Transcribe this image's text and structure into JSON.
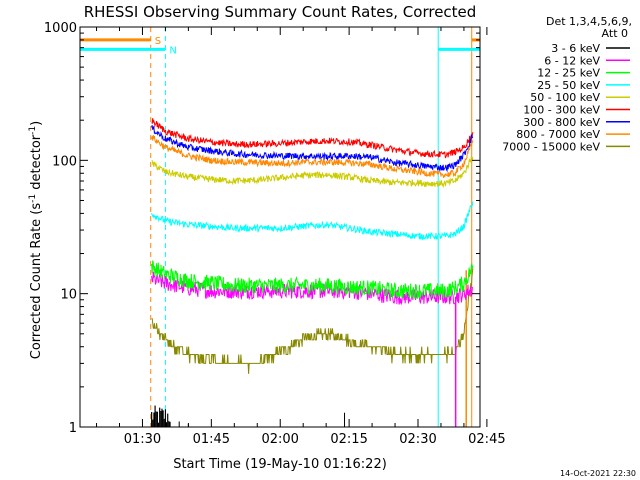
{
  "chart_data": {
    "type": "line",
    "title": "RHESSI Observing Summary Count Rates, Corrected",
    "xlabel": "Start Time (19-May-10 01:16:22)",
    "ylabel_main": "Corrected Count Rate (s",
    "ylabel_exp1": "-1",
    "ylabel_mid": " detector",
    "ylabel_exp2": "-1",
    "ylabel_end": ")",
    "y_scale": "log",
    "ylim": [
      1,
      1000
    ],
    "xlim_minutes": [
      76.4,
      163.5
    ],
    "x_ticks": [
      {
        "minute": 90,
        "label": "01:30"
      },
      {
        "minute": 105,
        "label": "01:45"
      },
      {
        "minute": 120,
        "label": "02:00"
      },
      {
        "minute": 135,
        "label": "02:15"
      },
      {
        "minute": 150,
        "label": "02:30"
      },
      {
        "minute": 165,
        "label": "02:45"
      }
    ],
    "y_ticks": [
      {
        "value": 1,
        "label": "1"
      },
      {
        "value": 10,
        "label": "10"
      },
      {
        "value": 100,
        "label": "100"
      },
      {
        "value": 1000,
        "label": "1000"
      }
    ],
    "legend": {
      "header1": "Det 1,3,4,5,6,9,",
      "header2": "Att 0",
      "placement": "right",
      "entries": [
        {
          "label": "3 - 6 keV",
          "color": "#000000"
        },
        {
          "label": "6 - 12 keV",
          "color": "#ff00ff"
        },
        {
          "label": "12 - 25 keV",
          "color": "#00ff00"
        },
        {
          "label": "25 - 50 keV",
          "color": "#00ffff"
        },
        {
          "label": "50 - 100 keV",
          "color": "#cccc00"
        },
        {
          "label": "100 - 300 keV",
          "color": "#ff0000"
        },
        {
          "label": "300 - 800 keV",
          "color": "#0000ff"
        },
        {
          "label": "800 - 7000 keV",
          "color": "#ff8800"
        },
        {
          "label": "7000 - 15000 keV",
          "color": "#888800"
        }
      ]
    },
    "series": [
      {
        "name": "300 - 800 keV",
        "color": "#0000ff",
        "x": [
          92,
          95,
          100,
          105,
          110,
          115,
          120,
          125,
          130,
          135,
          140,
          145,
          150,
          152,
          156,
          158,
          160,
          162
        ],
        "y": [
          175,
          145,
          125,
          118,
          112,
          110,
          108,
          108,
          107,
          108,
          105,
          96,
          92,
          90,
          88,
          92,
          110,
          155
        ]
      },
      {
        "name": "100 - 300 keV",
        "color": "#ff0000",
        "x": [
          92,
          95,
          100,
          105,
          110,
          115,
          120,
          125,
          130,
          135,
          140,
          145,
          150,
          152,
          156,
          158,
          160,
          162
        ],
        "y": [
          200,
          165,
          145,
          137,
          132,
          132,
          134,
          138,
          140,
          138,
          130,
          120,
          113,
          112,
          110,
          115,
          125,
          160
        ]
      },
      {
        "name": "800 - 7000 keV",
        "color": "#ff8800",
        "x": [
          92,
          95,
          100,
          105,
          110,
          115,
          120,
          125,
          130,
          135,
          140,
          145,
          150,
          152,
          156,
          158,
          160,
          162
        ],
        "y": [
          150,
          125,
          108,
          100,
          97,
          96,
          95,
          97,
          97,
          96,
          93,
          86,
          82,
          80,
          78,
          80,
          95,
          140
        ]
      },
      {
        "name": "50 - 100 keV",
        "color": "#cccc00",
        "x": [
          92,
          95,
          100,
          105,
          110,
          115,
          120,
          125,
          130,
          135,
          140,
          145,
          150,
          152,
          156,
          158,
          160,
          162
        ],
        "y": [
          95,
          82,
          75,
          72,
          70,
          71,
          74,
          77,
          78,
          75,
          70,
          68,
          68,
          67,
          67,
          70,
          80,
          110
        ]
      },
      {
        "name": "25 - 50 keV",
        "color": "#00ffff",
        "x": [
          92,
          95,
          100,
          105,
          110,
          115,
          120,
          125,
          130,
          135,
          140,
          145,
          150,
          152,
          156,
          158,
          160,
          162
        ],
        "y": [
          40,
          35,
          33,
          32,
          31,
          31,
          31,
          32,
          33,
          31,
          29,
          28,
          27,
          27,
          27,
          28,
          32,
          50
        ]
      },
      {
        "name": "12 - 25 keV",
        "color": "#00ff00",
        "x": [
          92,
          95,
          100,
          105,
          110,
          115,
          120,
          125,
          130,
          135,
          140,
          145,
          150,
          152,
          156,
          158,
          160,
          162
        ],
        "y": [
          16,
          14,
          12.5,
          12,
          11.5,
          11.5,
          11.5,
          11.5,
          11.5,
          11.2,
          11,
          10.5,
          10.5,
          10.5,
          10.5,
          11,
          12,
          16
        ]
      },
      {
        "name": "6 - 12 keV",
        "color": "#ff00ff",
        "x": [
          92,
          95,
          100,
          105,
          110,
          115,
          120,
          125,
          130,
          135,
          140,
          145,
          150,
          152,
          156,
          158,
          160,
          162
        ],
        "y": [
          13,
          12,
          11,
          10.5,
          10.5,
          10.5,
          10.5,
          10.5,
          10.5,
          10.5,
          10,
          9.5,
          9.5,
          9.5,
          9.5,
          9.5,
          10,
          11
        ]
      },
      {
        "name": "7000 - 15000 keV",
        "color": "#888800",
        "x": [
          92,
          95,
          100,
          105,
          110,
          115,
          120,
          125,
          130,
          135,
          140,
          145,
          150,
          152,
          156,
          158,
          160,
          162
        ],
        "y": [
          6,
          4.5,
          3.5,
          3.2,
          3,
          3,
          3.6,
          4.6,
          5,
          4.5,
          4,
          3.5,
          3.5,
          3.5,
          3.5,
          3.6,
          5,
          15
        ]
      },
      {
        "name": "3 - 6 keV",
        "color": "#000000",
        "x": [
          92,
          93,
          94,
          95,
          96,
          100,
          134,
          156,
          158,
          160
        ],
        "y": [
          1.3,
          1.3,
          1.2,
          1.2,
          1.1,
          1.0,
          1.25,
          1.0,
          1.0,
          1.0
        ]
      }
    ],
    "bars": [
      {
        "label": "S",
        "color": "#ff8800",
        "x": [
          76.4,
          91.8
        ],
        "y": 800
      },
      {
        "label": "N",
        "color": "#00ffff",
        "x": [
          76.4,
          95
        ],
        "y": 680
      },
      {
        "label": "",
        "color": "#ff8800",
        "x": [
          161.7,
          163.5
        ],
        "y": 800
      },
      {
        "label": "",
        "color": "#00ffff",
        "x": [
          154.4,
          163.5
        ],
        "y": 680
      }
    ],
    "vlines": [
      {
        "x": 91.8,
        "color": "#ff8800",
        "style": "dashed"
      },
      {
        "x": 95,
        "color": "#00ffff",
        "style": "dashed"
      },
      {
        "x": 154.4,
        "color": "#00ffff",
        "style": "solid"
      },
      {
        "x": 161.7,
        "color": "#ff8800",
        "style": "solid"
      },
      {
        "x": 163.5,
        "color": "#ff8800",
        "style": "dashed"
      }
    ]
  },
  "footer": {
    "date": "14-Oct-2021 22:30"
  }
}
